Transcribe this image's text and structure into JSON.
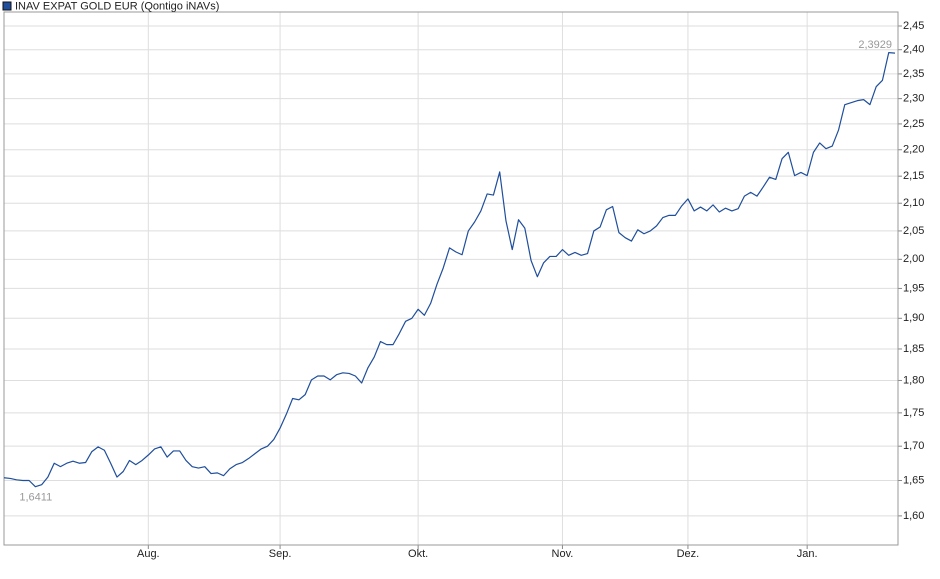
{
  "chart_data": {
    "type": "line",
    "log_scale": true,
    "grid": true,
    "legend": "top-left",
    "categories": [
      null,
      null,
      null,
      null,
      null,
      null,
      null,
      null,
      null,
      null,
      null,
      null,
      null,
      null,
      null,
      null,
      null,
      null,
      null,
      null,
      null,
      null,
      null,
      "Aug.",
      null,
      null,
      null,
      null,
      null,
      null,
      null,
      null,
      null,
      null,
      null,
      null,
      null,
      null,
      null,
      null,
      null,
      null,
      null,
      null,
      "Sep.",
      null,
      null,
      null,
      null,
      null,
      null,
      null,
      null,
      null,
      null,
      null,
      null,
      null,
      null,
      null,
      null,
      null,
      null,
      null,
      null,
      null,
      "Okt.",
      null,
      null,
      null,
      null,
      null,
      null,
      null,
      null,
      null,
      null,
      null,
      null,
      null,
      null,
      null,
      null,
      null,
      null,
      null,
      null,
      null,
      null,
      "Nov.",
      null,
      null,
      null,
      null,
      null,
      null,
      null,
      null,
      null,
      null,
      null,
      null,
      null,
      null,
      null,
      null,
      null,
      null,
      null,
      "Dez.",
      null,
      null,
      null,
      null,
      null,
      null,
      null,
      null,
      null,
      null,
      null,
      null,
      null,
      null,
      null,
      null,
      null,
      null,
      "Jan.",
      null,
      null,
      null,
      null,
      null,
      null,
      null,
      null,
      null,
      null,
      null,
      null,
      null,
      null
    ],
    "series": [
      {
        "name": "INAV EXPAT GOLD EUR (Qontigo iNAVs)",
        "color": "#1f4e9c",
        "values": [
          1.654,
          1.653,
          1.651,
          1.65,
          1.65,
          1.6411,
          1.644,
          1.655,
          1.675,
          1.67,
          1.675,
          1.678,
          1.675,
          1.676,
          1.692,
          1.699,
          1.694,
          1.675,
          1.655,
          1.663,
          1.679,
          1.673,
          1.679,
          1.687,
          1.696,
          1.699,
          1.684,
          1.693,
          1.693,
          1.679,
          1.67,
          1.668,
          1.67,
          1.66,
          1.661,
          1.657,
          1.667,
          1.673,
          1.676,
          1.682,
          1.689,
          1.696,
          1.7,
          1.71,
          1.727,
          1.748,
          1.772,
          1.77,
          1.778,
          1.801,
          1.807,
          1.807,
          1.801,
          1.809,
          1.812,
          1.811,
          1.807,
          1.796,
          1.82,
          1.837,
          1.862,
          1.857,
          1.857,
          1.875,
          1.895,
          1.9,
          1.915,
          1.905,
          1.925,
          1.957,
          1.985,
          2.02,
          2.013,
          2.008,
          2.05,
          2.066,
          2.086,
          2.117,
          2.115,
          2.158,
          2.068,
          2.017,
          2.07,
          2.055,
          1.998,
          1.97,
          1.994,
          2.005,
          2.005,
          2.017,
          2.007,
          2.012,
          2.007,
          2.01,
          2.05,
          2.057,
          2.088,
          2.094,
          2.047,
          2.038,
          2.032,
          2.052,
          2.045,
          2.05,
          2.059,
          2.074,
          2.078,
          2.078,
          2.095,
          2.108,
          2.086,
          2.093,
          2.086,
          2.097,
          2.084,
          2.091,
          2.086,
          2.09,
          2.113,
          2.12,
          2.113,
          2.13,
          2.148,
          2.144,
          2.183,
          2.195,
          2.151,
          2.157,
          2.151,
          2.195,
          2.213,
          2.202,
          2.207,
          2.238,
          2.288,
          2.292,
          2.296,
          2.298,
          2.288,
          2.324,
          2.337,
          2.394,
          2.3929
        ],
        "value_labels": [
          null,
          null,
          null,
          null,
          null,
          "1,6411",
          null,
          null,
          null,
          null,
          null,
          null,
          null,
          null,
          null,
          null,
          null,
          null,
          null,
          null,
          null,
          null,
          null,
          null,
          null,
          null,
          null,
          null,
          null,
          null,
          null,
          null,
          null,
          null,
          null,
          null,
          null,
          null,
          null,
          null,
          null,
          null,
          null,
          null,
          null,
          null,
          null,
          null,
          null,
          null,
          null,
          null,
          null,
          null,
          null,
          null,
          null,
          null,
          null,
          null,
          null,
          null,
          null,
          null,
          null,
          null,
          null,
          null,
          null,
          null,
          null,
          null,
          null,
          null,
          null,
          null,
          null,
          null,
          null,
          null,
          null,
          null,
          null,
          null,
          null,
          null,
          null,
          null,
          null,
          null,
          null,
          null,
          null,
          null,
          null,
          null,
          null,
          null,
          null,
          null,
          null,
          null,
          null,
          null,
          null,
          null,
          null,
          null,
          null,
          null,
          null,
          null,
          null,
          null,
          null,
          null,
          null,
          null,
          null,
          null,
          null,
          null,
          null,
          null,
          null,
          null,
          null,
          null,
          null,
          null,
          null,
          null,
          null,
          null,
          null,
          null,
          null,
          null,
          null,
          null,
          null,
          null,
          "2,3929"
        ]
      }
    ],
    "ylim": [
      1.56,
      2.48
    ],
    "yticks": [
      {
        "value": 1.6,
        "label": "1,60"
      },
      {
        "value": 1.65,
        "label": "1,65"
      },
      {
        "value": 1.7,
        "label": "1,70"
      },
      {
        "value": 1.75,
        "label": "1,75"
      },
      {
        "value": 1.8,
        "label": "1,80"
      },
      {
        "value": 1.85,
        "label": "1,85"
      },
      {
        "value": 1.9,
        "label": "1,90"
      },
      {
        "value": 1.95,
        "label": "1,95"
      },
      {
        "value": 2.0,
        "label": "2,00"
      },
      {
        "value": 2.05,
        "label": "2,05"
      },
      {
        "value": 2.1,
        "label": "2,10"
      },
      {
        "value": 2.15,
        "label": "2,15"
      },
      {
        "value": 2.2,
        "label": "2,20"
      },
      {
        "value": 2.25,
        "label": "2,25"
      },
      {
        "value": 2.3,
        "label": "2,30"
      },
      {
        "value": 2.35,
        "label": "2,35"
      },
      {
        "value": 2.4,
        "label": "2,40"
      },
      {
        "value": 2.45,
        "label": "2,45"
      }
    ]
  }
}
